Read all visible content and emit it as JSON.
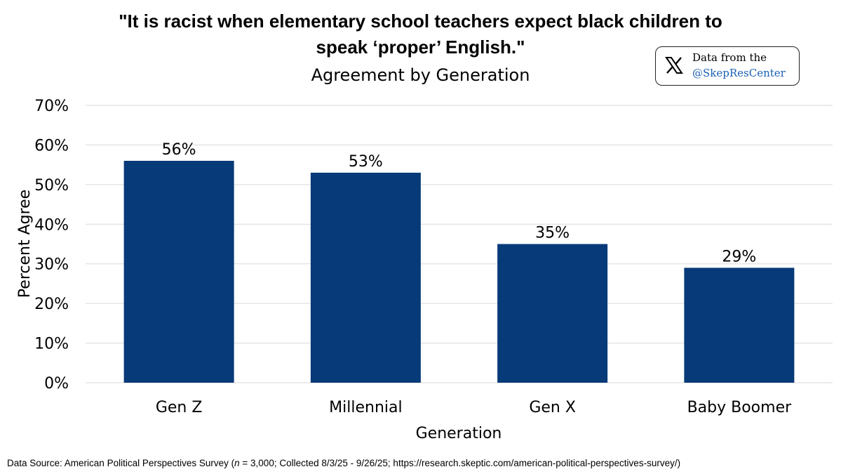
{
  "colors": {
    "bar": "#063a78",
    "grid": "#d9d9d9",
    "link": "#1a5fb4"
  },
  "badge": {
    "icon": "x-logo-icon",
    "line1": "Data from the",
    "line2": "@SkepResCenter"
  },
  "source": {
    "prefix": "Data Source: American Political Perspectives Survey (",
    "n_label": "n",
    "suffix": " = 3,000; Collected 8/3/25 - 9/26/25; https://research.skeptic.com/american-political-perspectives-survey/)"
  },
  "chart_data": {
    "type": "bar",
    "title": "\"It is racist when elementary school teachers expect black children to speak ‘proper’ English.\"",
    "title_lines": [
      "\"It is racist when elementary school teachers expect black children to",
      "speak ‘proper’ English.\""
    ],
    "subtitle": "Agreement by Generation",
    "categories": [
      "Gen Z",
      "Millennial",
      "Gen X",
      "Baby Boomer"
    ],
    "values": [
      56,
      53,
      35,
      29
    ],
    "data_labels": [
      "56%",
      "53%",
      "35%",
      "29%"
    ],
    "xlabel": "Generation",
    "ylabel": "Percent Agree",
    "ylim": [
      0,
      70
    ],
    "yticks": [
      0,
      10,
      20,
      30,
      40,
      50,
      60,
      70
    ],
    "ytick_labels": [
      "0%",
      "10%",
      "20%",
      "30%",
      "40%",
      "50%",
      "60%",
      "70%"
    ],
    "grid": true,
    "legend": "none"
  }
}
